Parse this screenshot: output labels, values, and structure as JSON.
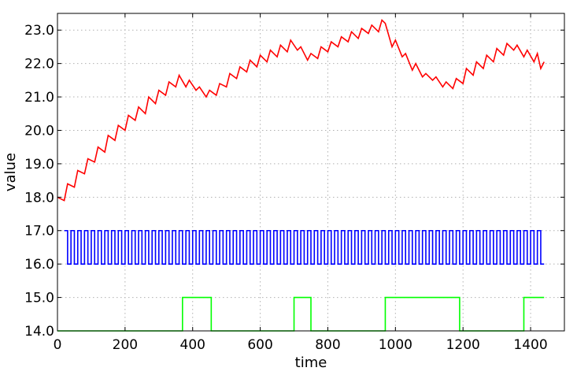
{
  "chart_data": {
    "type": "line",
    "xlabel": "time",
    "ylabel": "value",
    "xlim": [
      0,
      1500
    ],
    "ylim": [
      14.0,
      23.5
    ],
    "xticks": [
      "0",
      "200",
      "400",
      "600",
      "800",
      "1000",
      "1200",
      "1400"
    ],
    "yticks": [
      "14.0",
      "15.0",
      "16.0",
      "17.0",
      "18.0",
      "19.0",
      "20.0",
      "21.0",
      "22.0",
      "23.0"
    ],
    "grid": true,
    "series": [
      {
        "color": "#ff0000",
        "x": [
          0,
          20,
          30,
          50,
          60,
          80,
          90,
          110,
          120,
          140,
          150,
          170,
          180,
          200,
          210,
          230,
          240,
          260,
          270,
          290,
          300,
          320,
          330,
          350,
          360,
          380,
          390,
          410,
          420,
          440,
          450,
          470,
          480,
          500,
          510,
          530,
          540,
          560,
          570,
          590,
          600,
          620,
          630,
          650,
          660,
          680,
          690,
          710,
          720,
          740,
          750,
          770,
          780,
          800,
          810,
          830,
          840,
          860,
          870,
          890,
          900,
          920,
          930,
          950,
          960,
          970,
          990,
          1000,
          1020,
          1030,
          1050,
          1060,
          1080,
          1090,
          1110,
          1120,
          1140,
          1150,
          1170,
          1180,
          1200,
          1210,
          1230,
          1240,
          1260,
          1270,
          1290,
          1300,
          1320,
          1330,
          1350,
          1360,
          1380,
          1390,
          1410,
          1420,
          1430,
          1440
        ],
        "y": [
          18.0,
          17.9,
          18.4,
          18.3,
          18.8,
          18.7,
          19.15,
          19.05,
          19.5,
          19.35,
          19.85,
          19.7,
          20.15,
          20.0,
          20.45,
          20.3,
          20.7,
          20.5,
          21.0,
          20.8,
          21.2,
          21.05,
          21.45,
          21.3,
          21.65,
          21.3,
          21.5,
          21.2,
          21.3,
          21.0,
          21.2,
          21.05,
          21.4,
          21.3,
          21.7,
          21.55,
          21.9,
          21.75,
          22.1,
          21.9,
          22.25,
          22.05,
          22.4,
          22.2,
          22.55,
          22.35,
          22.7,
          22.4,
          22.5,
          22.1,
          22.3,
          22.15,
          22.5,
          22.35,
          22.65,
          22.5,
          22.8,
          22.65,
          22.95,
          22.75,
          23.05,
          22.9,
          23.15,
          22.95,
          23.3,
          23.2,
          22.5,
          22.7,
          22.2,
          22.3,
          21.8,
          22.0,
          21.6,
          21.7,
          21.5,
          21.6,
          21.3,
          21.45,
          21.25,
          21.55,
          21.4,
          21.85,
          21.65,
          22.05,
          21.85,
          22.25,
          22.05,
          22.45,
          22.25,
          22.6,
          22.4,
          22.55,
          22.2,
          22.4,
          22.05,
          22.3,
          21.85,
          22.05
        ]
      },
      {
        "color": "#0000ff",
        "type": "square-wave",
        "start": 20,
        "end": 1440,
        "half_period": 10,
        "low": 16.0,
        "high": 17.0
      },
      {
        "color": "#00ff00",
        "x": [
          0,
          370,
          370,
          455,
          455,
          700,
          700,
          750,
          750,
          970,
          970,
          1190,
          1190,
          1380,
          1380,
          1440
        ],
        "y": [
          14.0,
          14.0,
          15.0,
          15.0,
          14.0,
          14.0,
          15.0,
          15.0,
          14.0,
          14.0,
          15.0,
          15.0,
          14.0,
          14.0,
          15.0,
          15.0
        ]
      }
    ]
  }
}
